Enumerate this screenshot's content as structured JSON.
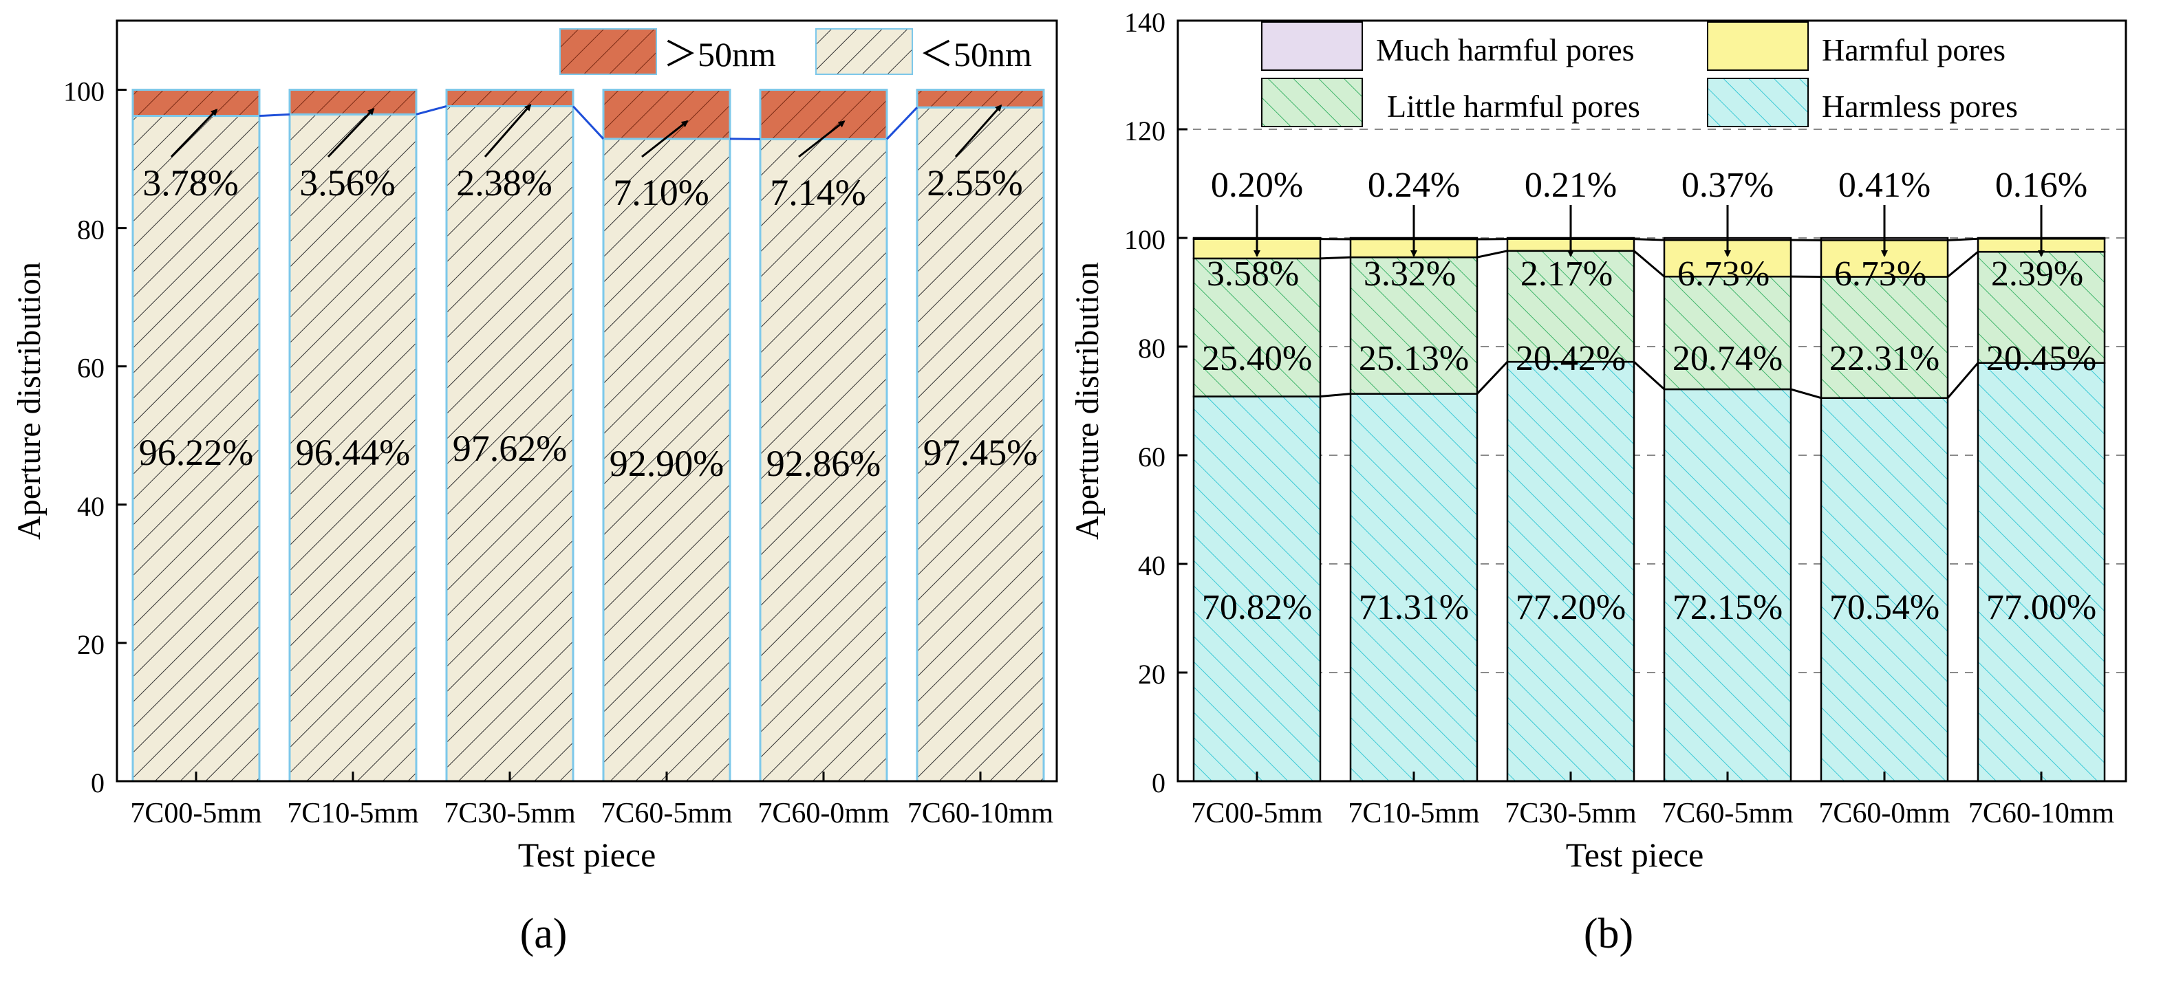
{
  "chart_data": [
    {
      "type": "bar",
      "stacked": true,
      "panel_label": "(a)",
      "xlabel": "Test piece",
      "ylabel": "Aperture distribution",
      "ylim": [
        0,
        110
      ],
      "yticks": [
        0,
        20,
        40,
        60,
        80,
        100
      ],
      "grid": false,
      "legend_position": "top-right",
      "categories": [
        "7C00-5mm",
        "7C10-5mm",
        "7C30-5mm",
        "7C60-5mm",
        "7C60-0mm",
        "7C60-10mm"
      ],
      "series": [
        {
          "name": "＜50nm",
          "values": [
            96.22,
            96.44,
            97.62,
            92.9,
            92.86,
            97.45
          ],
          "labels": [
            "96.22%",
            "96.44%",
            "97.62%",
            "92.90%",
            "92.86%",
            "97.45%"
          ],
          "color": "#f1ecd9",
          "hatch_color": "#333333"
        },
        {
          "name": "＞50nm",
          "values": [
            3.78,
            3.56,
            2.38,
            7.1,
            7.14,
            2.55
          ],
          "labels": [
            "3.78%",
            "3.56%",
            "2.38%",
            "7.10%",
            "7.14%",
            "2.55%"
          ],
          "color": "#d9704f",
          "hatch_color": "#7a2a14"
        }
      ],
      "bar_edge_color": "#7dc8ea",
      "connector_color": "#1e4fd9"
    },
    {
      "type": "bar",
      "stacked": true,
      "panel_label": "(b)",
      "xlabel": "Test piece",
      "ylabel": "Aperture distribution",
      "ylim": [
        0,
        140
      ],
      "yticks": [
        0,
        20,
        40,
        60,
        80,
        100,
        120,
        140
      ],
      "grid": true,
      "legend_position": "top",
      "categories": [
        "7C00-5mm",
        "7C10-5mm",
        "7C30-5mm",
        "7C60-5mm",
        "7C60-0mm",
        "7C60-10mm"
      ],
      "series": [
        {
          "name": "Harmless pores",
          "values": [
            70.82,
            71.31,
            77.2,
            72.15,
            70.54,
            77.0
          ],
          "labels": [
            "70.82%",
            "71.31%",
            "77.20%",
            "72.15%",
            "70.54%",
            "77.00%"
          ],
          "color": "#c6f2f0",
          "hatch_color": "#3ac9d6"
        },
        {
          "name": "Little harmful pores",
          "values": [
            25.4,
            25.13,
            20.42,
            20.74,
            22.31,
            20.45
          ],
          "labels": [
            "25.40%",
            "25.13%",
            "20.42%",
            "20.74%",
            "22.31%",
            "20.45%"
          ],
          "color": "#d2efd2",
          "hatch_color": "#3fb56a"
        },
        {
          "name": "Harmful pores",
          "values": [
            3.58,
            3.32,
            2.17,
            6.73,
            6.73,
            2.39
          ],
          "labels": [
            "3.58%",
            "3.32%",
            "2.17%",
            "6.73%",
            "6.73%",
            "2.39%"
          ],
          "color": "#fbf59a",
          "hatch_color": null
        },
        {
          "name": "Much harmful pores",
          "values": [
            0.2,
            0.24,
            0.21,
            0.37,
            0.41,
            0.16
          ],
          "labels": [
            "0.20%",
            "0.24%",
            "0.21%",
            "0.37%",
            "0.41%",
            "0.16%"
          ],
          "color": "#e6dcef",
          "hatch_color": null
        }
      ],
      "bar_edge_color": "#000000",
      "connector_color": "#000000",
      "gridline_color": "#8a8a8a"
    }
  ]
}
